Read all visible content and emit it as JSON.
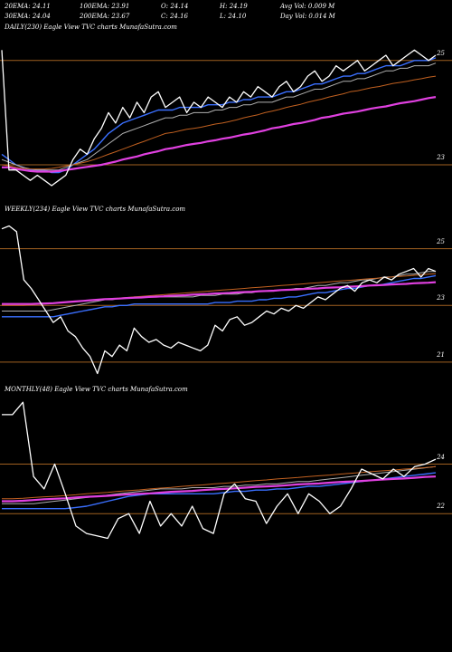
{
  "header": {
    "row1": [
      "20EMA: 24.11",
      "100EMA: 23.91",
      "O: 24.14",
      "H: 24.19",
      "Avg Vol: 0.009 M"
    ],
    "row2": [
      "30EMA: 24.04",
      "200EMA: 23.67",
      "C: 24.16",
      "L: 24.10",
      "Day Vol: 0.014 M"
    ]
  },
  "colors": {
    "price": "#ffffff",
    "ema_blue": "#3a6fff",
    "ema_silver": "#b0b0b0",
    "ema_magenta": "#e040e0",
    "ema_orange": "#c06020",
    "gridline": "#a06020"
  },
  "chart_data": [
    {
      "type": "line",
      "title": "DAILY(230) Eagle   View  TVC charts MunafaSutra.com",
      "ytick_labels": [
        {
          "value": 25,
          "label": "25"
        },
        {
          "value": 23,
          "label": "23"
        }
      ],
      "ylim": [
        22.6,
        25.5
      ],
      "series": [
        {
          "role": "price",
          "color": "#ffffff",
          "values": [
            25.2,
            22.9,
            22.9,
            22.8,
            22.7,
            22.8,
            22.7,
            22.6,
            22.7,
            22.8,
            23.1,
            23.3,
            23.2,
            23.5,
            23.7,
            24.0,
            23.8,
            24.1,
            23.9,
            24.2,
            24.0,
            24.3,
            24.4,
            24.1,
            24.2,
            24.3,
            24.0,
            24.2,
            24.1,
            24.3,
            24.2,
            24.1,
            24.3,
            24.2,
            24.4,
            24.3,
            24.5,
            24.4,
            24.3,
            24.5,
            24.6,
            24.4,
            24.5,
            24.7,
            24.8,
            24.6,
            24.7,
            24.9,
            24.8,
            24.9,
            25.0,
            24.8,
            24.9,
            25.0,
            25.1,
            24.9,
            25.0,
            25.1,
            25.2,
            25.1,
            25.0,
            25.1
          ]
        },
        {
          "role": "ema",
          "color": "#3a6fff",
          "values": [
            23.2,
            23.1,
            23.0,
            22.95,
            22.9,
            22.9,
            22.9,
            22.85,
            22.85,
            22.9,
            23.0,
            23.1,
            23.2,
            23.3,
            23.45,
            23.6,
            23.7,
            23.8,
            23.85,
            23.9,
            23.95,
            24.0,
            24.05,
            24.05,
            24.05,
            24.1,
            24.1,
            24.1,
            24.1,
            24.15,
            24.15,
            24.15,
            24.2,
            24.2,
            24.25,
            24.25,
            24.3,
            24.3,
            24.3,
            24.35,
            24.4,
            24.4,
            24.45,
            24.5,
            24.55,
            24.55,
            24.6,
            24.65,
            24.7,
            24.7,
            24.75,
            24.75,
            24.8,
            24.85,
            24.9,
            24.9,
            24.9,
            24.95,
            25.0,
            25.0,
            25.0,
            25.05
          ]
        },
        {
          "role": "ema",
          "color": "#b0b0b0",
          "values": [
            23.1,
            23.05,
            23.0,
            22.95,
            22.92,
            22.9,
            22.9,
            22.9,
            22.9,
            22.95,
            23.0,
            23.05,
            23.1,
            23.2,
            23.3,
            23.4,
            23.5,
            23.6,
            23.65,
            23.7,
            23.75,
            23.8,
            23.85,
            23.9,
            23.9,
            23.95,
            23.95,
            24.0,
            24.0,
            24.0,
            24.05,
            24.05,
            24.1,
            24.1,
            24.15,
            24.15,
            24.2,
            24.2,
            24.2,
            24.25,
            24.3,
            24.3,
            24.35,
            24.4,
            24.45,
            24.45,
            24.5,
            24.55,
            24.6,
            24.6,
            24.65,
            24.65,
            24.7,
            24.75,
            24.8,
            24.8,
            24.85,
            24.85,
            24.9,
            24.9,
            24.9,
            24.95
          ]
        },
        {
          "role": "ema",
          "color": "#c06020",
          "values": [
            23.0,
            22.98,
            22.95,
            22.93,
            22.92,
            22.92,
            22.92,
            22.93,
            22.95,
            22.98,
            23.0,
            23.03,
            23.06,
            23.1,
            23.15,
            23.2,
            23.25,
            23.3,
            23.35,
            23.4,
            23.45,
            23.5,
            23.55,
            23.6,
            23.62,
            23.65,
            23.68,
            23.7,
            23.72,
            23.75,
            23.78,
            23.8,
            23.83,
            23.86,
            23.9,
            23.93,
            23.96,
            24.0,
            24.03,
            24.06,
            24.1,
            24.13,
            24.16,
            24.2,
            24.23,
            24.26,
            24.3,
            24.33,
            24.36,
            24.4,
            24.42,
            24.45,
            24.48,
            24.5,
            24.53,
            24.56,
            24.58,
            24.6,
            24.63,
            24.65,
            24.68,
            24.7
          ]
        },
        {
          "role": "ema",
          "color": "#e040e0",
          "values": [
            22.95,
            22.95,
            22.92,
            22.9,
            22.88,
            22.87,
            22.87,
            22.87,
            22.88,
            22.9,
            22.92,
            22.94,
            22.96,
            22.98,
            23.0,
            23.03,
            23.06,
            23.1,
            23.13,
            23.16,
            23.2,
            23.23,
            23.26,
            23.3,
            23.32,
            23.35,
            23.38,
            23.4,
            23.42,
            23.45,
            23.47,
            23.5,
            23.52,
            23.55,
            23.58,
            23.6,
            23.63,
            23.66,
            23.7,
            23.72,
            23.75,
            23.78,
            23.8,
            23.83,
            23.86,
            23.9,
            23.92,
            23.95,
            23.98,
            24.0,
            24.02,
            24.05,
            24.08,
            24.1,
            24.12,
            24.15,
            24.18,
            24.2,
            24.22,
            24.25,
            24.28,
            24.3
          ]
        }
      ]
    },
    {
      "type": "line",
      "title": "WEEKLY(234) Eagle   View  TVC charts MunafaSutra.com",
      "ytick_labels": [
        {
          "value": 25,
          "label": "25"
        },
        {
          "value": 23,
          "label": "23"
        },
        {
          "value": 21,
          "label": "21"
        }
      ],
      "ylim": [
        20.2,
        26.2
      ],
      "series": [
        {
          "role": "price",
          "color": "#ffffff",
          "values": [
            25.7,
            25.8,
            25.6,
            23.9,
            23.6,
            23.2,
            22.8,
            22.4,
            22.6,
            22.1,
            21.9,
            21.5,
            21.2,
            20.6,
            21.4,
            21.2,
            21.6,
            21.4,
            22.2,
            21.9,
            21.7,
            21.8,
            21.6,
            21.5,
            21.7,
            21.6,
            21.5,
            21.4,
            21.6,
            22.3,
            22.1,
            22.5,
            22.6,
            22.3,
            22.4,
            22.6,
            22.8,
            22.7,
            22.9,
            22.8,
            23.0,
            22.9,
            23.1,
            23.3,
            23.2,
            23.4,
            23.6,
            23.7,
            23.5,
            23.8,
            23.9,
            23.8,
            24.0,
            23.9,
            24.1,
            24.2,
            24.3,
            24.0,
            24.3,
            24.2
          ]
        },
        {
          "role": "ema",
          "color": "#3a6fff",
          "values": [
            22.6,
            22.6,
            22.6,
            22.6,
            22.6,
            22.6,
            22.6,
            22.6,
            22.65,
            22.7,
            22.75,
            22.8,
            22.85,
            22.9,
            22.95,
            22.95,
            23.0,
            23.0,
            23.05,
            23.05,
            23.05,
            23.05,
            23.05,
            23.05,
            23.05,
            23.05,
            23.05,
            23.05,
            23.05,
            23.1,
            23.1,
            23.1,
            23.15,
            23.15,
            23.15,
            23.2,
            23.2,
            23.25,
            23.25,
            23.3,
            23.3,
            23.35,
            23.4,
            23.45,
            23.45,
            23.5,
            23.55,
            23.6,
            23.6,
            23.65,
            23.7,
            23.7,
            23.75,
            23.8,
            23.85,
            23.9,
            23.95,
            23.95,
            24.0,
            24.05
          ]
        },
        {
          "role": "ema",
          "color": "#b0b0b0",
          "values": [
            22.8,
            22.8,
            22.8,
            22.8,
            22.8,
            22.8,
            22.8,
            22.85,
            22.9,
            22.95,
            23.0,
            23.05,
            23.1,
            23.15,
            23.2,
            23.2,
            23.25,
            23.25,
            23.3,
            23.3,
            23.3,
            23.3,
            23.3,
            23.3,
            23.3,
            23.3,
            23.3,
            23.35,
            23.35,
            23.35,
            23.4,
            23.4,
            23.4,
            23.45,
            23.45,
            23.5,
            23.5,
            23.5,
            23.55,
            23.55,
            23.6,
            23.6,
            23.65,
            23.7,
            23.7,
            23.75,
            23.8,
            23.8,
            23.85,
            23.9,
            23.9,
            23.95,
            24.0,
            24.0,
            24.05,
            24.1,
            24.1,
            24.15,
            24.2,
            24.2
          ]
        },
        {
          "role": "ema",
          "color": "#c06020",
          "values": [
            23.0,
            23.0,
            23.0,
            23.0,
            23.02,
            23.04,
            23.06,
            23.08,
            23.1,
            23.12,
            23.14,
            23.16,
            23.18,
            23.2,
            23.22,
            23.24,
            23.26,
            23.28,
            23.3,
            23.32,
            23.34,
            23.36,
            23.38,
            23.4,
            23.42,
            23.44,
            23.46,
            23.48,
            23.5,
            23.52,
            23.54,
            23.56,
            23.58,
            23.6,
            23.62,
            23.64,
            23.66,
            23.68,
            23.7,
            23.72,
            23.74,
            23.76,
            23.78,
            23.8,
            23.82,
            23.84,
            23.86,
            23.88,
            23.9,
            23.92,
            23.94,
            23.96,
            23.98,
            24.0,
            24.02,
            24.04,
            24.06,
            24.08,
            24.1,
            24.12
          ]
        },
        {
          "role": "ema",
          "color": "#e040e0",
          "values": [
            23.05,
            23.05,
            23.05,
            23.05,
            23.05,
            23.06,
            23.07,
            23.08,
            23.1,
            23.12,
            23.14,
            23.16,
            23.18,
            23.2,
            23.22,
            23.23,
            23.24,
            23.26,
            23.27,
            23.28,
            23.3,
            23.31,
            23.32,
            23.34,
            23.35,
            23.36,
            23.38,
            23.39,
            23.4,
            23.42,
            23.43,
            23.44,
            23.46,
            23.47,
            23.48,
            23.5,
            23.51,
            23.52,
            23.54,
            23.55,
            23.56,
            23.58,
            23.59,
            23.6,
            23.62,
            23.63,
            23.64,
            23.66,
            23.67,
            23.68,
            23.7,
            23.71,
            23.72,
            23.74,
            23.75,
            23.76,
            23.78,
            23.79,
            23.8,
            23.82
          ]
        }
      ]
    },
    {
      "type": "line",
      "title": "MONTHLY(48) Eagle   View  TVC charts MunafaSutra.com",
      "ytick_labels": [
        {
          "value": 24,
          "label": "24"
        },
        {
          "value": 22,
          "label": "22"
        }
      ],
      "ylim": [
        20.8,
        26.8
      ],
      "series": [
        {
          "role": "price",
          "color": "#ffffff",
          "values": [
            26.0,
            26.0,
            26.5,
            23.5,
            23.0,
            24.0,
            22.8,
            21.5,
            21.2,
            21.1,
            21.0,
            21.8,
            22.0,
            21.2,
            22.5,
            21.5,
            22.0,
            21.5,
            22.3,
            21.4,
            21.2,
            22.8,
            23.2,
            22.6,
            22.5,
            21.6,
            22.3,
            22.8,
            22.0,
            22.8,
            22.5,
            22.0,
            22.3,
            23.0,
            23.8,
            23.6,
            23.4,
            23.8,
            23.5,
            23.9,
            24.0,
            24.2
          ]
        },
        {
          "role": "ema",
          "color": "#3a6fff",
          "values": [
            22.2,
            22.2,
            22.2,
            22.2,
            22.2,
            22.2,
            22.2,
            22.25,
            22.3,
            22.4,
            22.5,
            22.6,
            22.7,
            22.75,
            22.8,
            22.8,
            22.8,
            22.8,
            22.8,
            22.8,
            22.8,
            22.85,
            22.9,
            22.9,
            22.95,
            22.95,
            23.0,
            23.0,
            23.05,
            23.1,
            23.1,
            23.15,
            23.2,
            23.25,
            23.3,
            23.35,
            23.4,
            23.45,
            23.5,
            23.55,
            23.6,
            23.65
          ]
        },
        {
          "role": "ema",
          "color": "#b0b0b0",
          "values": [
            22.4,
            22.4,
            22.4,
            22.4,
            22.45,
            22.5,
            22.55,
            22.6,
            22.65,
            22.7,
            22.75,
            22.8,
            22.85,
            22.9,
            22.95,
            23.0,
            23.0,
            23.0,
            23.05,
            23.05,
            23.05,
            23.1,
            23.1,
            23.15,
            23.15,
            23.2,
            23.2,
            23.25,
            23.3,
            23.3,
            23.35,
            23.4,
            23.45,
            23.5,
            23.55,
            23.6,
            23.65,
            23.7,
            23.75,
            23.8,
            23.85,
            23.9
          ]
        },
        {
          "role": "ema",
          "color": "#c06020",
          "values": [
            22.6,
            22.6,
            22.62,
            22.65,
            22.68,
            22.7,
            22.73,
            22.76,
            22.8,
            22.83,
            22.86,
            22.9,
            22.93,
            22.96,
            23.0,
            23.03,
            23.06,
            23.1,
            23.13,
            23.16,
            23.2,
            23.23,
            23.26,
            23.3,
            23.33,
            23.36,
            23.4,
            23.43,
            23.46,
            23.5,
            23.53,
            23.56,
            23.6,
            23.63,
            23.66,
            23.7,
            23.73,
            23.76,
            23.8,
            23.83,
            23.86,
            23.9
          ]
        },
        {
          "role": "ema",
          "color": "#e040e0",
          "values": [
            22.5,
            22.5,
            22.52,
            22.55,
            22.58,
            22.6,
            22.62,
            22.65,
            22.68,
            22.7,
            22.72,
            22.75,
            22.78,
            22.8,
            22.82,
            22.85,
            22.88,
            22.9,
            22.92,
            22.95,
            22.98,
            23.0,
            23.02,
            23.05,
            23.08,
            23.1,
            23.12,
            23.15,
            23.18,
            23.2,
            23.22,
            23.25,
            23.28,
            23.3,
            23.32,
            23.35,
            23.38,
            23.4,
            23.42,
            23.45,
            23.48,
            23.5
          ]
        }
      ]
    }
  ]
}
